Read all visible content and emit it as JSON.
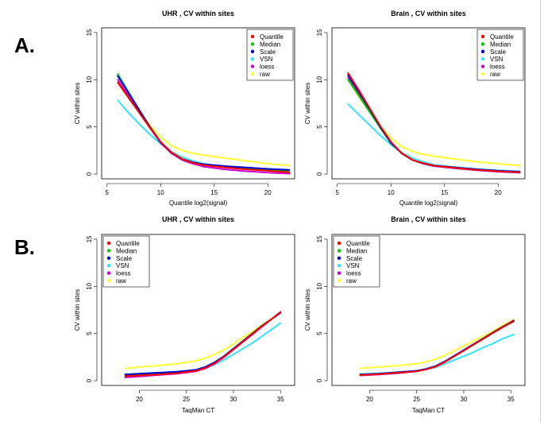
{
  "figure_labels": {
    "a": "A.",
    "b": "B."
  },
  "colors": {
    "Quantile": "#ff0000",
    "Median": "#00cc00",
    "Scale": "#0000cc",
    "VSN": "#33e5ff",
    "loess": "#cc00cc",
    "raw": "#ffff33"
  },
  "chart_data": [
    {
      "type": "line",
      "title": "UHR , CV within sites",
      "xlabel": "Quantile log2(signal)",
      "ylabel": "CV within sites",
      "xlim": [
        4.5,
        22.5
      ],
      "ylim": [
        -0.5,
        15.5
      ],
      "xticks": [
        5,
        10,
        15,
        20
      ],
      "yticks": [
        0,
        5,
        10,
        15
      ],
      "legend": "top-right",
      "series": [
        {
          "name": "raw",
          "x": [
            6,
            7,
            8,
            9,
            10,
            11,
            12,
            13,
            14,
            16,
            18,
            20,
            22
          ],
          "y": [
            10.0,
            8.1,
            6.6,
            5.2,
            3.9,
            3.0,
            2.5,
            2.2,
            2.0,
            1.7,
            1.4,
            1.1,
            0.9
          ]
        },
        {
          "name": "VSN",
          "x": [
            6,
            7,
            8,
            9,
            10,
            11,
            12,
            13,
            14,
            16,
            18,
            20,
            22
          ],
          "y": [
            7.8,
            6.5,
            5.3,
            4.2,
            3.2,
            2.4,
            1.8,
            1.4,
            1.1,
            0.8,
            0.6,
            0.5,
            0.4
          ]
        },
        {
          "name": "loess",
          "x": [
            6,
            7,
            8,
            9,
            10,
            11,
            12,
            13,
            14,
            16,
            18,
            20,
            22
          ],
          "y": [
            10.0,
            8.3,
            6.6,
            4.9,
            3.3,
            2.2,
            1.5,
            1.1,
            0.8,
            0.5,
            0.3,
            0.15,
            0.05
          ]
        },
        {
          "name": "Median",
          "x": [
            6,
            7,
            8,
            9,
            10,
            11,
            12,
            13,
            14,
            16,
            18,
            20,
            22
          ],
          "y": [
            10.6,
            8.7,
            6.8,
            5.0,
            3.4,
            2.3,
            1.6,
            1.25,
            1.0,
            0.75,
            0.55,
            0.45,
            0.35
          ]
        },
        {
          "name": "Scale",
          "x": [
            6,
            7,
            8,
            9,
            10,
            11,
            12,
            13,
            14,
            16,
            18,
            20,
            22
          ],
          "y": [
            10.4,
            8.6,
            6.8,
            5.0,
            3.4,
            2.3,
            1.6,
            1.25,
            1.05,
            0.85,
            0.7,
            0.55,
            0.45
          ]
        },
        {
          "name": "Quantile",
          "x": [
            6,
            7,
            8,
            9,
            10,
            11,
            12,
            13,
            14,
            16,
            18,
            20,
            22
          ],
          "y": [
            9.7,
            8.1,
            6.5,
            4.9,
            3.4,
            2.3,
            1.6,
            1.2,
            0.95,
            0.7,
            0.5,
            0.35,
            0.2
          ]
        }
      ]
    },
    {
      "type": "line",
      "title": "Brain , CV within sites",
      "xlabel": "Quantile log2(signal)",
      "ylabel": "CV within sites",
      "xlim": [
        4.5,
        22.5
      ],
      "ylim": [
        -0.5,
        15.5
      ],
      "xticks": [
        5,
        10,
        15,
        20
      ],
      "yticks": [
        0,
        5,
        10,
        15
      ],
      "legend": "top-right",
      "series": [
        {
          "name": "raw",
          "x": [
            6,
            7,
            8,
            9,
            10,
            11,
            12,
            13,
            14,
            16,
            18,
            20,
            22
          ],
          "y": [
            10.0,
            8.2,
            6.6,
            5.1,
            3.8,
            2.9,
            2.4,
            2.1,
            1.9,
            1.6,
            1.3,
            1.1,
            0.9
          ]
        },
        {
          "name": "VSN",
          "x": [
            6,
            7,
            8,
            9,
            10,
            11,
            12,
            13,
            14,
            16,
            18,
            20,
            22
          ],
          "y": [
            7.4,
            6.3,
            5.2,
            4.1,
            3.1,
            2.3,
            1.7,
            1.3,
            1.0,
            0.75,
            0.55,
            0.4,
            0.3
          ]
        },
        {
          "name": "loess",
          "x": [
            6,
            7,
            8,
            9,
            10,
            11,
            12,
            13,
            14,
            16,
            18,
            20,
            22
          ],
          "y": [
            10.3,
            8.6,
            6.8,
            5.0,
            3.3,
            2.2,
            1.5,
            1.1,
            0.85,
            0.6,
            0.4,
            0.25,
            0.15
          ]
        },
        {
          "name": "Median",
          "x": [
            6,
            7,
            8,
            9,
            10,
            11,
            12,
            13,
            14,
            16,
            18,
            20,
            22
          ],
          "y": [
            10.0,
            8.3,
            6.6,
            4.9,
            3.3,
            2.2,
            1.5,
            1.15,
            0.9,
            0.65,
            0.45,
            0.3,
            0.2
          ]
        },
        {
          "name": "Scale",
          "x": [
            6,
            7,
            8,
            9,
            10,
            11,
            12,
            13,
            14,
            16,
            18,
            20,
            22
          ],
          "y": [
            10.5,
            8.7,
            6.9,
            5.0,
            3.3,
            2.2,
            1.5,
            1.15,
            0.9,
            0.7,
            0.5,
            0.35,
            0.25
          ]
        },
        {
          "name": "Quantile",
          "x": [
            6,
            7,
            8,
            9,
            10,
            11,
            12,
            13,
            14,
            16,
            18,
            20,
            22
          ],
          "y": [
            10.7,
            8.9,
            7.0,
            5.1,
            3.4,
            2.2,
            1.5,
            1.15,
            0.9,
            0.65,
            0.45,
            0.3,
            0.2
          ]
        }
      ]
    },
    {
      "type": "line",
      "title": "UHR , CV within sites",
      "xlabel": "TaqMan CT",
      "ylabel": "CV within sites",
      "xlim": [
        16,
        36.5
      ],
      "ylim": [
        -0.5,
        15.5
      ],
      "xticks": [
        20,
        25,
        30,
        35
      ],
      "yticks": [
        0,
        5,
        10,
        15
      ],
      "legend": "top-left",
      "series": [
        {
          "name": "raw",
          "x": [
            18.5,
            20,
            22,
            24,
            26,
            27,
            28,
            29,
            30,
            31,
            32,
            33,
            34,
            35
          ],
          "y": [
            1.3,
            1.45,
            1.6,
            1.8,
            2.1,
            2.4,
            2.8,
            3.3,
            3.9,
            4.6,
            5.2,
            5.9,
            6.5,
            7.2
          ]
        },
        {
          "name": "VSN",
          "x": [
            18.5,
            20,
            22,
            24,
            26,
            27,
            28,
            29,
            30,
            31,
            32,
            33,
            34,
            35
          ],
          "y": [
            0.7,
            0.75,
            0.85,
            0.95,
            1.1,
            1.3,
            1.7,
            2.2,
            2.8,
            3.4,
            4.0,
            4.7,
            5.4,
            6.1
          ]
        },
        {
          "name": "loess",
          "x": [
            18.5,
            20,
            22,
            24,
            26,
            27,
            28,
            29,
            30,
            31,
            32,
            33,
            34,
            35
          ],
          "y": [
            0.35,
            0.45,
            0.6,
            0.75,
            1.0,
            1.3,
            1.8,
            2.5,
            3.3,
            4.1,
            4.9,
            5.7,
            6.5,
            7.3
          ]
        },
        {
          "name": "Median",
          "x": [
            18.5,
            20,
            22,
            24,
            26,
            27,
            28,
            29,
            30,
            31,
            32,
            33,
            34,
            35
          ],
          "y": [
            0.5,
            0.6,
            0.7,
            0.85,
            1.1,
            1.4,
            1.9,
            2.6,
            3.4,
            4.2,
            5.0,
            5.8,
            6.5,
            7.2
          ]
        },
        {
          "name": "Scale",
          "x": [
            18.5,
            20,
            22,
            24,
            26,
            27,
            28,
            29,
            30,
            31,
            32,
            33,
            34,
            35
          ],
          "y": [
            0.65,
            0.75,
            0.85,
            0.95,
            1.15,
            1.45,
            1.95,
            2.6,
            3.4,
            4.2,
            5.0,
            5.8,
            6.5,
            7.2
          ]
        },
        {
          "name": "Quantile",
          "x": [
            18.5,
            20,
            22,
            24,
            26,
            27,
            28,
            29,
            30,
            31,
            32,
            33,
            34,
            35
          ],
          "y": [
            0.5,
            0.55,
            0.65,
            0.8,
            1.05,
            1.35,
            1.85,
            2.55,
            3.35,
            4.15,
            4.95,
            5.75,
            6.5,
            7.25
          ]
        }
      ]
    },
    {
      "type": "line",
      "title": "Brain , CV within sites",
      "xlabel": "TaqMan CT",
      "ylabel": "CV within sites",
      "xlim": [
        16,
        36.5
      ],
      "ylim": [
        -0.5,
        15.5
      ],
      "xticks": [
        20,
        25,
        30,
        35
      ],
      "yticks": [
        0,
        5,
        10,
        15
      ],
      "legend": "top-left",
      "series": [
        {
          "name": "raw",
          "x": [
            19,
            21,
            23,
            25,
            26,
            27,
            28,
            29,
            30,
            31,
            32,
            33,
            34,
            35.3
          ],
          "y": [
            1.3,
            1.45,
            1.6,
            1.8,
            2.0,
            2.3,
            2.7,
            3.2,
            3.7,
            4.2,
            4.7,
            5.2,
            5.8,
            6.5
          ]
        },
        {
          "name": "VSN",
          "x": [
            19,
            21,
            23,
            25,
            26,
            27,
            28,
            29,
            30,
            31,
            32,
            33,
            34,
            35.3
          ],
          "y": [
            0.7,
            0.8,
            0.9,
            1.05,
            1.2,
            1.4,
            1.8,
            2.2,
            2.6,
            3.0,
            3.5,
            3.9,
            4.4,
            4.9
          ]
        },
        {
          "name": "loess",
          "x": [
            19,
            21,
            23,
            25,
            26,
            27,
            28,
            29,
            30,
            31,
            32,
            33,
            34,
            35.3
          ],
          "y": [
            0.55,
            0.65,
            0.8,
            1.0,
            1.2,
            1.5,
            2.0,
            2.6,
            3.2,
            3.8,
            4.4,
            5.0,
            5.6,
            6.4
          ]
        },
        {
          "name": "Median",
          "x": [
            19,
            21,
            23,
            25,
            26,
            27,
            28,
            29,
            30,
            31,
            32,
            33,
            34,
            35.3
          ],
          "y": [
            0.6,
            0.7,
            0.85,
            1.0,
            1.2,
            1.5,
            2.0,
            2.6,
            3.2,
            3.8,
            4.4,
            5.0,
            5.6,
            6.3
          ]
        },
        {
          "name": "Scale",
          "x": [
            19,
            21,
            23,
            25,
            26,
            27,
            28,
            29,
            30,
            31,
            32,
            33,
            34,
            35.3
          ],
          "y": [
            0.65,
            0.75,
            0.9,
            1.05,
            1.25,
            1.55,
            2.05,
            2.65,
            3.25,
            3.85,
            4.45,
            5.05,
            5.65,
            6.35
          ]
        },
        {
          "name": "Quantile",
          "x": [
            19,
            21,
            23,
            25,
            26,
            27,
            28,
            29,
            30,
            31,
            32,
            33,
            34,
            35.3
          ],
          "y": [
            0.6,
            0.7,
            0.85,
            1.0,
            1.2,
            1.5,
            2.0,
            2.6,
            3.2,
            3.8,
            4.4,
            5.0,
            5.6,
            6.3
          ]
        }
      ]
    }
  ]
}
